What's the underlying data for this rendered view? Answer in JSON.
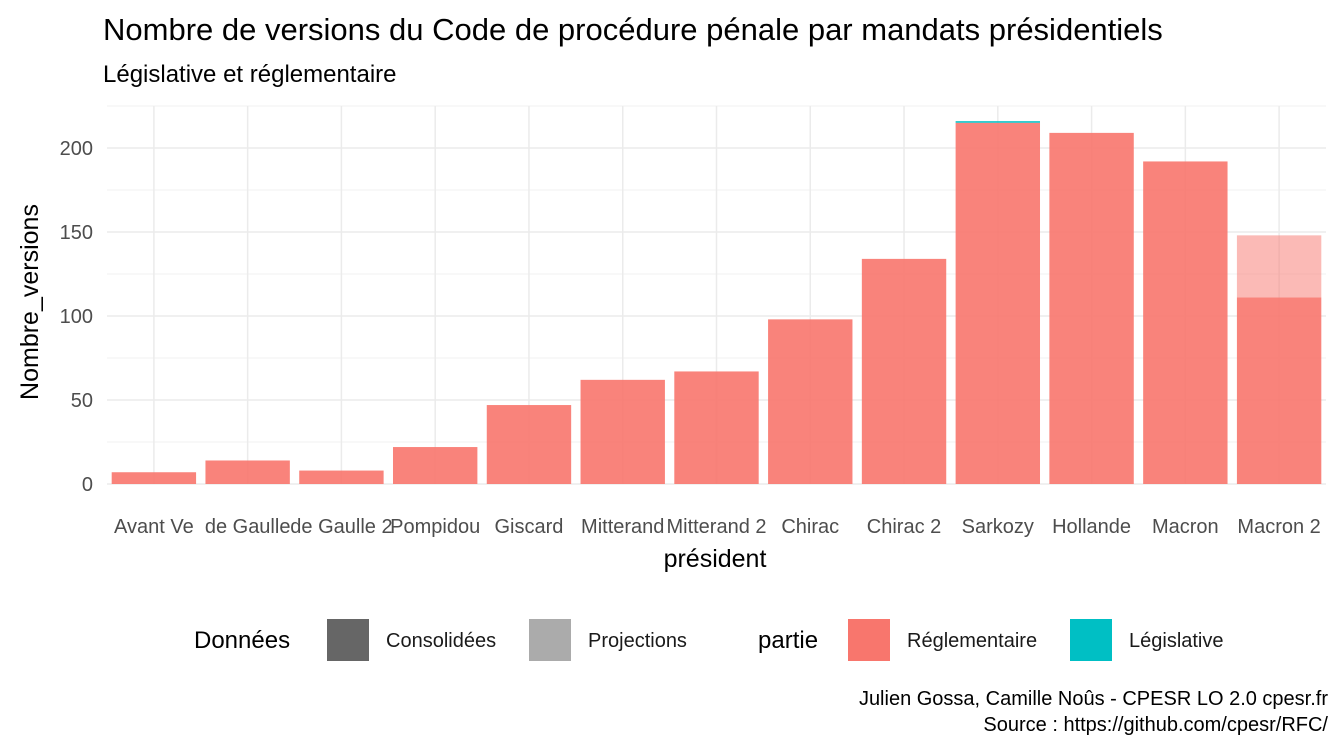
{
  "title": "Nombre de versions du Code de procédure pénale par mandats présidentiels",
  "subtitle": "Législative et réglementaire",
  "legend": {
    "donnees_title": "Données",
    "donnees_items": [
      {
        "label": "Consolidées",
        "color": "#666666"
      },
      {
        "label": "Projections",
        "color": "#ababab"
      }
    ],
    "partie_title": "partie",
    "partie_items": [
      {
        "label": "Réglementaire",
        "color": "#F8766D"
      },
      {
        "label": "Législative",
        "color": "#00BFC4"
      }
    ]
  },
  "caption": {
    "line1": "Julien Gossa, Camille Noûs - CPESR LO 2.0 cpesr.fr",
    "line2": "Source : https://github.com/cpesr/RFC/"
  },
  "chart_data": {
    "type": "bar",
    "stacked": true,
    "xlabel": "président",
    "ylabel": "Nombre_versions",
    "ylim": [
      0,
      225
    ],
    "yticks": [
      0,
      50,
      100,
      150,
      200
    ],
    "grid": true,
    "legend_position": "bottom",
    "categories": [
      "Avant Ve",
      "de Gaulle",
      "de Gaulle 2",
      "Pompidou",
      "Giscard",
      "Mitterand",
      "Mitterand 2",
      "Chirac",
      "Chirac 2",
      "Sarkozy",
      "Hollande",
      "Macron",
      "Macron 2"
    ],
    "series": [
      {
        "name": "Réglementaire",
        "donnees": "Consolidées",
        "color": "#F8766D",
        "opacity": 0.9,
        "values": [
          7,
          14,
          8,
          22,
          47,
          62,
          67,
          98,
          134,
          215,
          209,
          192,
          111
        ]
      },
      {
        "name": "Législative",
        "donnees": "Consolidées",
        "color": "#00BFC4",
        "opacity": 0.9,
        "values": [
          0,
          0,
          0,
          0,
          0,
          0,
          0,
          0,
          0,
          1,
          0,
          0,
          0
        ]
      },
      {
        "name": "Réglementaire",
        "donnees": "Projections",
        "color": "#F8766D",
        "opacity": 0.5,
        "values": [
          0,
          0,
          0,
          0,
          0,
          0,
          0,
          0,
          0,
          0,
          0,
          0,
          37
        ]
      }
    ]
  }
}
